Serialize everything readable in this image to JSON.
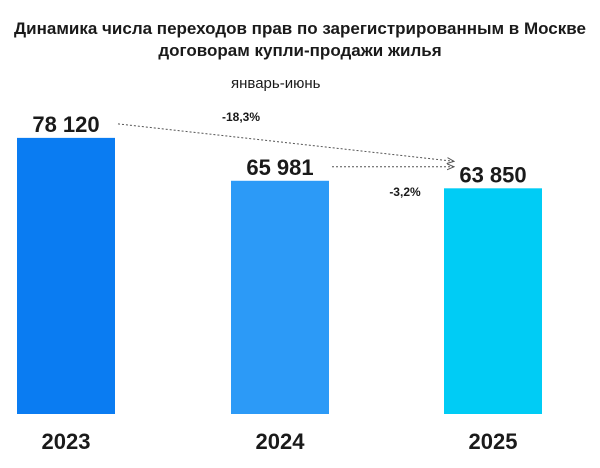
{
  "chart_data": {
    "type": "bar",
    "title": "Динамика числа переходов прав по зарегистрированным в Москве договорам купли-продажи жилья",
    "subtitle": "январь-июнь",
    "categories": [
      "2023",
      "2024",
      "2025"
    ],
    "values": [
      78120,
      65981,
      63850
    ],
    "value_labels": [
      "78 120",
      "65 981",
      "63 850"
    ],
    "colors": [
      "#0A7CF2",
      "#2C9AF7",
      "#00CCF5"
    ],
    "annotations": [
      {
        "from": "2023",
        "to": "2025",
        "label": "-18,3%"
      },
      {
        "from": "2024",
        "to": "2025",
        "label": "-3,2%"
      }
    ]
  }
}
